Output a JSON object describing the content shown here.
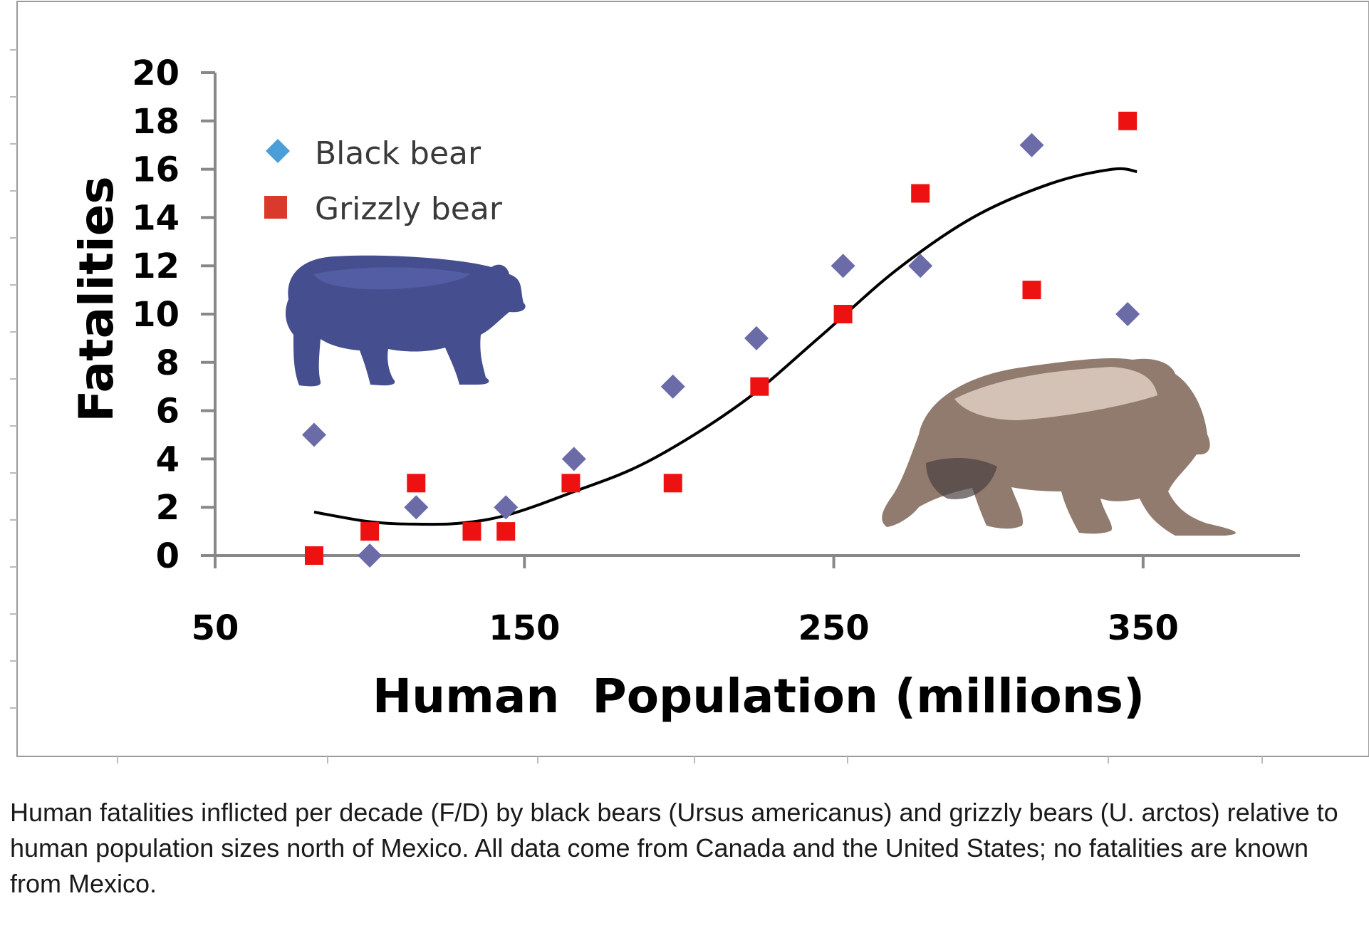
{
  "chart_data": {
    "type": "scatter",
    "title": "",
    "xlabel": "Human  Population (millions)",
    "ylabel": "Fatalities",
    "xlim": [
      50,
      400
    ],
    "ylim": [
      0,
      20
    ],
    "x_ticks": [
      50,
      150,
      250,
      350
    ],
    "y_ticks": [
      0,
      2,
      4,
      6,
      8,
      10,
      12,
      14,
      16,
      18,
      20
    ],
    "grid": false,
    "legend_position": "top-left",
    "series": [
      {
        "name": "Black bear",
        "marker": "diamond",
        "color": "#6b6ba8",
        "legend_color": "#4a9fd8",
        "points": [
          {
            "x": 82,
            "y": 5
          },
          {
            "x": 100,
            "y": 0
          },
          {
            "x": 115,
            "y": 2
          },
          {
            "x": 144,
            "y": 2
          },
          {
            "x": 166,
            "y": 4
          },
          {
            "x": 198,
            "y": 7
          },
          {
            "x": 225,
            "y": 9
          },
          {
            "x": 253,
            "y": 12
          },
          {
            "x": 278,
            "y": 12
          },
          {
            "x": 314,
            "y": 17
          },
          {
            "x": 345,
            "y": 10
          }
        ]
      },
      {
        "name": "Grizzly bear",
        "marker": "square",
        "color": "#ee1111",
        "legend_color": "#d93a2b",
        "points": [
          {
            "x": 82,
            "y": 0
          },
          {
            "x": 100,
            "y": 1
          },
          {
            "x": 115,
            "y": 3
          },
          {
            "x": 133,
            "y": 1
          },
          {
            "x": 144,
            "y": 1
          },
          {
            "x": 165,
            "y": 3
          },
          {
            "x": 198,
            "y": 3
          },
          {
            "x": 226,
            "y": 7
          },
          {
            "x": 253,
            "y": 10
          },
          {
            "x": 278,
            "y": 15
          },
          {
            "x": 314,
            "y": 11
          },
          {
            "x": 345,
            "y": 18
          }
        ]
      }
    ],
    "trendline": {
      "color": "#000000",
      "points": [
        {
          "x": 82,
          "y": 1.8
        },
        {
          "x": 100,
          "y": 1.4
        },
        {
          "x": 115,
          "y": 1.3
        },
        {
          "x": 130,
          "y": 1.35
        },
        {
          "x": 145,
          "y": 1.7
        },
        {
          "x": 165,
          "y": 2.6
        },
        {
          "x": 190,
          "y": 3.9
        },
        {
          "x": 220,
          "y": 6.3
        },
        {
          "x": 245,
          "y": 9.0
        },
        {
          "x": 270,
          "y": 11.8
        },
        {
          "x": 295,
          "y": 14.0
        },
        {
          "x": 320,
          "y": 15.4
        },
        {
          "x": 340,
          "y": 16.0
        },
        {
          "x": 348,
          "y": 15.9
        }
      ]
    },
    "illustrations": [
      "black-bear",
      "grizzly-bear"
    ]
  },
  "caption": "Human fatalities inflicted per decade (F/D) by black bears (Ursus americanus) and grizzly bears (U. arctos) relative to human population sizes north of Mexico. All data come from Canada and the United States; no fatalities are known from Mexico."
}
